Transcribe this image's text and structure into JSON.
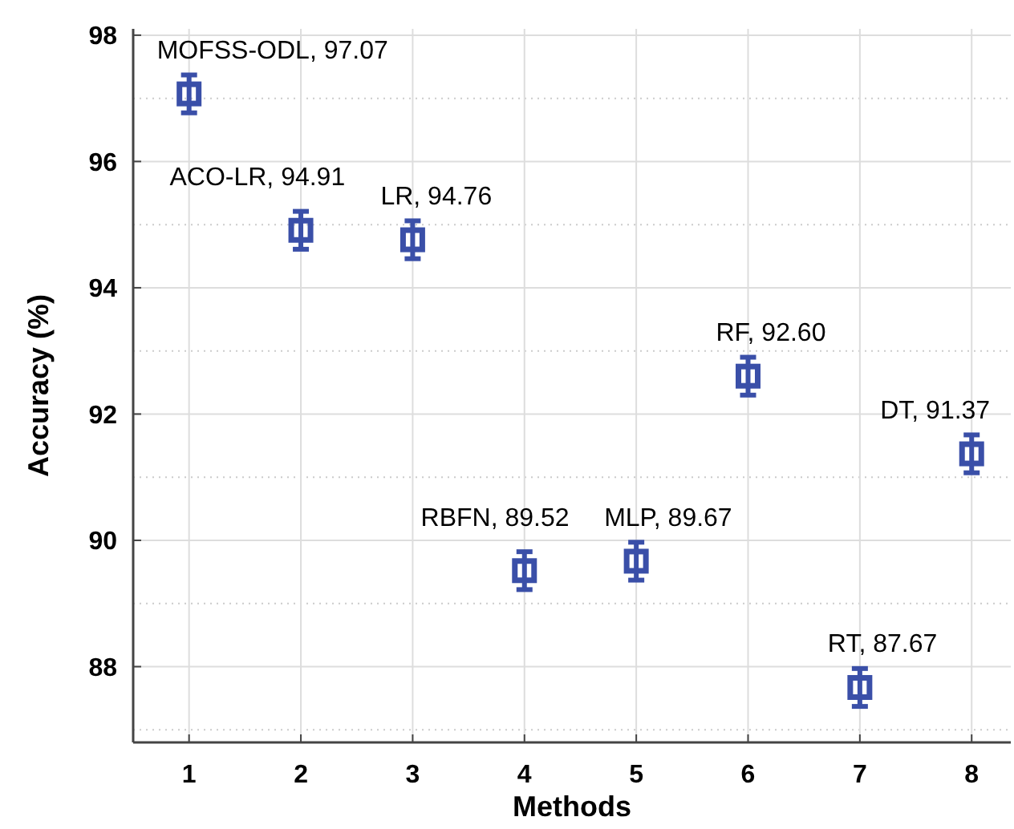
{
  "chart_data": {
    "type": "scatter",
    "xlabel": "Methods",
    "ylabel": "Accuracy (%)",
    "x": [
      1,
      2,
      3,
      4,
      5,
      6,
      7,
      8
    ],
    "series": [
      {
        "color": "#3a4fa8",
        "values": [
          97.07,
          94.91,
          94.76,
          89.52,
          89.67,
          92.6,
          87.67,
          91.37
        ],
        "errors": [
          0.3,
          0.3,
          0.3,
          0.3,
          0.3,
          0.3,
          0.3,
          0.3
        ]
      }
    ],
    "xlim": [
      0.5,
      8.35
    ],
    "xticks": [
      1,
      2,
      3,
      4,
      5,
      6,
      7,
      8
    ],
    "ylim": [
      86.8,
      98.1
    ],
    "yticks": [
      88,
      90,
      92,
      94,
      96,
      98
    ],
    "grid": true,
    "marker": "square",
    "annotations": [
      {
        "text": "MOFSS-ODL, 97.07",
        "x": 1,
        "y": 97.07
      },
      {
        "text": "ACO-LR, 94.91",
        "x": 2,
        "y": 94.91
      },
      {
        "text": "LR, 94.76",
        "x": 3,
        "y": 94.76
      },
      {
        "text": "RBFN, 89.52",
        "x": 4,
        "y": 89.52
      },
      {
        "text": "MLP, 89.67",
        "x": 5,
        "y": 89.67
      },
      {
        "text": "RF, 92.60",
        "x": 6,
        "y": 92.6
      },
      {
        "text": "RT, 87.67",
        "x": 7,
        "y": 87.67
      },
      {
        "text": "DT, 91.37",
        "x": 8,
        "y": 91.37
      }
    ]
  }
}
